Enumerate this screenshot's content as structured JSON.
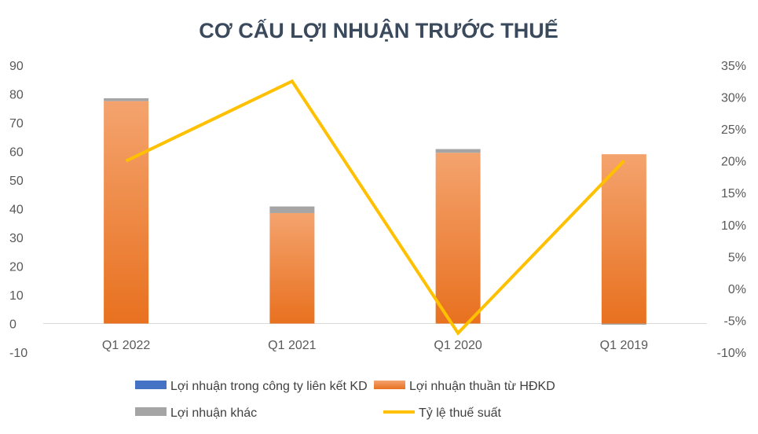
{
  "chart_data": {
    "type": "bar",
    "title": "CƠ CẤU LỢI NHUẬN TRƯỚC THUẾ",
    "categories": [
      "Q1 2022",
      "Q1 2021",
      "Q1 2020",
      "Q1 2019"
    ],
    "stacked": true,
    "series": [
      {
        "name": "Lợi nhuận trong công ty liên kết KD",
        "type": "bar",
        "axis": "left",
        "color": "#4472c4",
        "values": [
          0,
          0,
          0,
          0
        ]
      },
      {
        "name": "Lợi nhuận thuần từ HĐKD",
        "type": "bar",
        "axis": "left",
        "color": "#ed7d31",
        "values": [
          77.5,
          38.5,
          59.5,
          59
        ]
      },
      {
        "name": "Lợi nhuận khác",
        "type": "bar",
        "axis": "left",
        "color": "#a5a5a5",
        "values": [
          1,
          2.3,
          1.3,
          -0.4
        ]
      },
      {
        "name": "Tỷ lệ thuế suất",
        "type": "line",
        "axis": "right",
        "color": "#ffc000",
        "values": [
          0.2,
          0.325,
          -0.07,
          0.2
        ]
      }
    ],
    "y_left": {
      "min": -10,
      "max": 90,
      "ticks": [
        "90",
        "80",
        "70",
        "60",
        "50",
        "40",
        "30",
        "20",
        "10",
        "0",
        "-10"
      ]
    },
    "y_right": {
      "min": -0.1,
      "max": 0.35,
      "ticks": [
        "35%",
        "30%",
        "25%",
        "20%",
        "15%",
        "10%",
        "5%",
        "0%",
        "-5%",
        "-10%"
      ]
    },
    "grid": false,
    "legend_position": "bottom"
  }
}
